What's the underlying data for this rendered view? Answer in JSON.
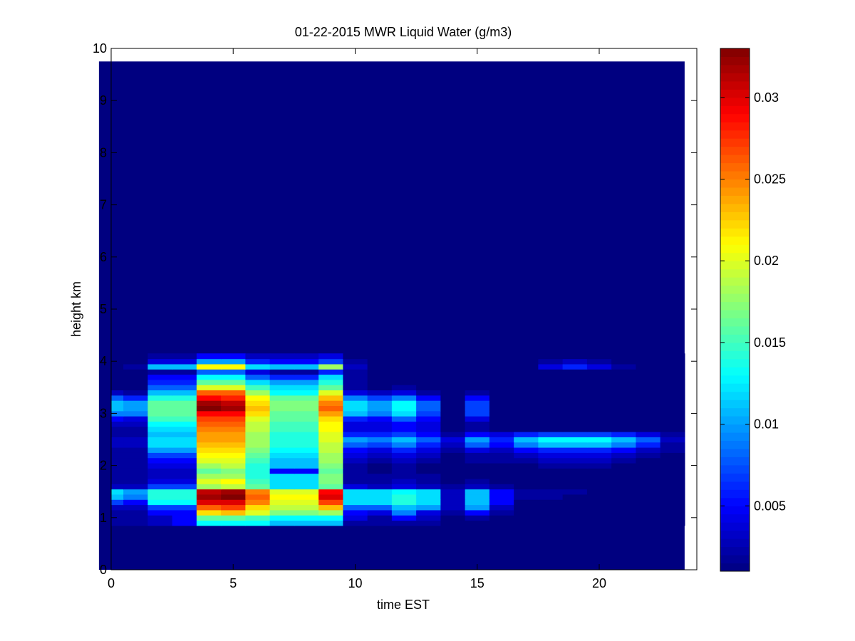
{
  "chart_data": {
    "type": "heatmap",
    "title": "01-22-2015 MWR Liquid Water (g/m3)",
    "xlabel": "time EST",
    "ylabel": "height km",
    "xlim": [
      0,
      24
    ],
    "ylim": [
      0,
      10
    ],
    "xticks": [
      0,
      5,
      10,
      15,
      20
    ],
    "yticks": [
      0,
      1,
      2,
      3,
      4,
      5,
      6,
      7,
      8,
      9,
      10
    ],
    "colormap": "jet",
    "clim": [
      0.001,
      0.033
    ],
    "colorbar_ticks": [
      0.005,
      0.01,
      0.015,
      0.02,
      0.025,
      0.03
    ],
    "colorbar_tick_labels": [
      "0.005",
      "0.01",
      "0.015",
      "0.02",
      "0.025",
      "0.03"
    ],
    "x": [
      0,
      1,
      2,
      3,
      4,
      5,
      6,
      7,
      8,
      9,
      10,
      11,
      12,
      13,
      14,
      15,
      16,
      17,
      18,
      19,
      20,
      21,
      22,
      23
    ],
    "y": [
      0.9,
      1.0,
      1.1,
      1.2,
      1.3,
      1.4,
      1.5,
      1.6,
      1.7,
      1.8,
      1.9,
      2.0,
      2.1,
      2.2,
      2.3,
      2.4,
      2.5,
      2.6,
      2.7,
      2.8,
      2.9,
      3.0,
      3.1,
      3.2,
      3.3,
      3.4,
      3.5,
      3.6,
      3.7,
      3.8,
      3.9,
      4.0,
      4.1
    ],
    "values": [
      [
        0.002,
        0.002,
        0.003,
        0.005,
        0.013,
        0.013,
        0.013,
        0.011,
        0.011,
        0.011,
        0.002,
        0.002,
        0.002,
        0.002,
        0.001,
        0.001,
        0.001,
        0.001,
        0.001,
        0.001,
        0.001,
        0.001,
        0.001,
        0.001
      ],
      [
        0.002,
        0.002,
        0.003,
        0.005,
        0.016,
        0.016,
        0.015,
        0.013,
        0.013,
        0.013,
        0.004,
        0.002,
        0.005,
        0.003,
        0.001,
        0.002,
        0.001,
        0.001,
        0.001,
        0.001,
        0.001,
        0.001,
        0.001,
        0.001
      ],
      [
        0.002,
        0.002,
        0.005,
        0.005,
        0.022,
        0.023,
        0.02,
        0.017,
        0.017,
        0.018,
        0.005,
        0.004,
        0.009,
        0.004,
        0.002,
        0.005,
        0.002,
        0.001,
        0.001,
        0.001,
        0.001,
        0.001,
        0.001,
        0.001
      ],
      [
        0.003,
        0.003,
        0.007,
        0.007,
        0.026,
        0.027,
        0.022,
        0.019,
        0.019,
        0.023,
        0.008,
        0.008,
        0.011,
        0.01,
        0.003,
        0.01,
        0.003,
        0.001,
        0.001,
        0.001,
        0.001,
        0.001,
        0.001,
        0.001
      ],
      [
        0.007,
        0.005,
        0.013,
        0.013,
        0.03,
        0.03,
        0.025,
        0.02,
        0.02,
        0.027,
        0.012,
        0.012,
        0.014,
        0.012,
        0.003,
        0.011,
        0.005,
        0.001,
        0.001,
        0.001,
        0.001,
        0.001,
        0.001,
        0.001
      ],
      [
        0.011,
        0.009,
        0.014,
        0.014,
        0.032,
        0.033,
        0.026,
        0.021,
        0.021,
        0.03,
        0.012,
        0.012,
        0.014,
        0.012,
        0.003,
        0.011,
        0.005,
        0.002,
        0.002,
        0.001,
        0.001,
        0.001,
        0.001,
        0.001
      ],
      [
        0.012,
        0.01,
        0.014,
        0.014,
        0.031,
        0.032,
        0.025,
        0.02,
        0.02,
        0.029,
        0.012,
        0.012,
        0.013,
        0.012,
        0.003,
        0.011,
        0.005,
        0.002,
        0.002,
        0.002,
        0.001,
        0.001,
        0.001,
        0.001
      ],
      [
        0.003,
        0.003,
        0.007,
        0.007,
        0.018,
        0.019,
        0.016,
        0.012,
        0.012,
        0.016,
        0.004,
        0.003,
        0.004,
        0.003,
        0.002,
        0.003,
        0.002,
        0.001,
        0.001,
        0.001,
        0.001,
        0.001,
        0.001,
        0.001
      ],
      [
        0.002,
        0.002,
        0.004,
        0.004,
        0.02,
        0.021,
        0.015,
        0.012,
        0.012,
        0.017,
        0.002,
        0.002,
        0.003,
        0.002,
        0.001,
        0.002,
        0.001,
        0.001,
        0.001,
        0.001,
        0.001,
        0.001,
        0.001,
        0.001
      ],
      [
        0.002,
        0.002,
        0.003,
        0.003,
        0.018,
        0.018,
        0.014,
        0.012,
        0.012,
        0.017,
        0.002,
        0.002,
        0.002,
        0.002,
        0.001,
        0.001,
        0.001,
        0.001,
        0.001,
        0.001,
        0.001,
        0.001,
        0.001,
        0.001
      ],
      [
        0.002,
        0.002,
        0.003,
        0.003,
        0.016,
        0.017,
        0.014,
        0.005,
        0.005,
        0.016,
        0.002,
        0.001,
        0.002,
        0.001,
        0.001,
        0.001,
        0.001,
        0.001,
        0.001,
        0.001,
        0.001,
        0.001,
        0.001,
        0.001
      ],
      [
        0.002,
        0.002,
        0.004,
        0.004,
        0.018,
        0.019,
        0.014,
        0.011,
        0.011,
        0.017,
        0.002,
        0.001,
        0.002,
        0.001,
        0.001,
        0.001,
        0.001,
        0.001,
        0.002,
        0.002,
        0.002,
        0.001,
        0.001,
        0.001
      ],
      [
        0.002,
        0.002,
        0.005,
        0.005,
        0.02,
        0.02,
        0.015,
        0.011,
        0.011,
        0.018,
        0.003,
        0.002,
        0.003,
        0.002,
        0.001,
        0.002,
        0.002,
        0.002,
        0.003,
        0.003,
        0.003,
        0.002,
        0.001,
        0.001
      ],
      [
        0.002,
        0.002,
        0.007,
        0.007,
        0.021,
        0.021,
        0.016,
        0.012,
        0.012,
        0.018,
        0.004,
        0.003,
        0.004,
        0.003,
        0.001,
        0.002,
        0.002,
        0.003,
        0.004,
        0.004,
        0.004,
        0.003,
        0.002,
        0.001
      ],
      [
        0.002,
        0.002,
        0.01,
        0.01,
        0.022,
        0.022,
        0.017,
        0.013,
        0.013,
        0.019,
        0.005,
        0.004,
        0.006,
        0.004,
        0.002,
        0.004,
        0.003,
        0.005,
        0.006,
        0.006,
        0.006,
        0.005,
        0.003,
        0.002
      ],
      [
        0.003,
        0.003,
        0.012,
        0.012,
        0.023,
        0.023,
        0.018,
        0.014,
        0.014,
        0.019,
        0.008,
        0.007,
        0.009,
        0.006,
        0.003,
        0.008,
        0.005,
        0.009,
        0.011,
        0.011,
        0.011,
        0.009,
        0.006,
        0.002
      ],
      [
        0.003,
        0.003,
        0.012,
        0.012,
        0.024,
        0.024,
        0.018,
        0.014,
        0.014,
        0.02,
        0.01,
        0.009,
        0.011,
        0.008,
        0.004,
        0.01,
        0.006,
        0.011,
        0.013,
        0.013,
        0.013,
        0.011,
        0.008,
        0.003
      ],
      [
        0.002,
        0.002,
        0.011,
        0.011,
        0.024,
        0.024,
        0.018,
        0.014,
        0.014,
        0.02,
        0.006,
        0.006,
        0.007,
        0.005,
        0.002,
        0.005,
        0.004,
        0.006,
        0.007,
        0.007,
        0.007,
        0.006,
        0.004,
        0.002
      ],
      [
        0.002,
        0.002,
        0.012,
        0.012,
        0.025,
        0.025,
        0.019,
        0.015,
        0.015,
        0.021,
        0.004,
        0.004,
        0.005,
        0.004,
        0.001,
        0.002,
        0.001,
        0.001,
        0.001,
        0.001,
        0.001,
        0.001,
        0.001,
        0.001
      ],
      [
        0.003,
        0.003,
        0.013,
        0.013,
        0.026,
        0.026,
        0.019,
        0.015,
        0.015,
        0.021,
        0.004,
        0.004,
        0.005,
        0.004,
        0.001,
        0.002,
        0.001,
        0.001,
        0.001,
        0.001,
        0.001,
        0.001,
        0.001,
        0.001
      ],
      [
        0.005,
        0.004,
        0.015,
        0.015,
        0.027,
        0.027,
        0.02,
        0.016,
        0.016,
        0.022,
        0.006,
        0.005,
        0.008,
        0.005,
        0.001,
        0.004,
        0.001,
        0.001,
        0.001,
        0.001,
        0.001,
        0.001,
        0.001,
        0.001
      ],
      [
        0.009,
        0.009,
        0.016,
        0.016,
        0.029,
        0.029,
        0.022,
        0.016,
        0.016,
        0.024,
        0.011,
        0.009,
        0.012,
        0.007,
        0.001,
        0.007,
        0.001,
        0.001,
        0.001,
        0.001,
        0.001,
        0.001,
        0.001,
        0.001
      ],
      [
        0.011,
        0.01,
        0.016,
        0.016,
        0.033,
        0.032,
        0.023,
        0.017,
        0.017,
        0.026,
        0.012,
        0.01,
        0.013,
        0.008,
        0.001,
        0.007,
        0.001,
        0.001,
        0.001,
        0.001,
        0.001,
        0.001,
        0.001,
        0.001
      ],
      [
        0.011,
        0.01,
        0.016,
        0.016,
        0.032,
        0.031,
        0.022,
        0.017,
        0.017,
        0.025,
        0.012,
        0.01,
        0.013,
        0.008,
        0.001,
        0.007,
        0.001,
        0.001,
        0.001,
        0.001,
        0.001,
        0.001,
        0.001,
        0.001
      ],
      [
        0.008,
        0.006,
        0.014,
        0.014,
        0.029,
        0.028,
        0.021,
        0.016,
        0.016,
        0.023,
        0.009,
        0.007,
        0.009,
        0.005,
        0.001,
        0.005,
        0.001,
        0.001,
        0.001,
        0.001,
        0.001,
        0.001,
        0.001,
        0.001
      ],
      [
        0.003,
        0.002,
        0.011,
        0.011,
        0.026,
        0.026,
        0.018,
        0.013,
        0.013,
        0.02,
        0.004,
        0.003,
        0.004,
        0.002,
        0.001,
        0.002,
        0.001,
        0.001,
        0.001,
        0.001,
        0.001,
        0.001,
        0.001,
        0.001
      ],
      [
        0.001,
        0.001,
        0.008,
        0.008,
        0.02,
        0.02,
        0.015,
        0.012,
        0.012,
        0.016,
        0.002,
        0.001,
        0.002,
        0.001,
        0.001,
        0.001,
        0.001,
        0.001,
        0.001,
        0.001,
        0.001,
        0.001,
        0.001,
        0.001
      ],
      [
        0.001,
        0.001,
        0.006,
        0.006,
        0.016,
        0.016,
        0.012,
        0.01,
        0.01,
        0.014,
        0.002,
        0.001,
        0.001,
        0.001,
        0.001,
        0.001,
        0.001,
        0.001,
        0.001,
        0.001,
        0.001,
        0.001,
        0.001,
        0.001
      ],
      [
        0.001,
        0.001,
        0.005,
        0.005,
        0.013,
        0.013,
        0.008,
        0.006,
        0.006,
        0.012,
        0.002,
        0.001,
        0.001,
        0.001,
        0.001,
        0.001,
        0.001,
        0.001,
        0.001,
        0.001,
        0.001,
        0.001,
        0.001,
        0.001
      ],
      [
        0.001,
        0.001,
        0.002,
        0.002,
        0.008,
        0.008,
        0.004,
        0.002,
        0.002,
        0.006,
        0.002,
        0.001,
        0.001,
        0.001,
        0.001,
        0.001,
        0.001,
        0.001,
        0.001,
        0.001,
        0.001,
        0.001,
        0.001,
        0.001
      ],
      [
        0.001,
        0.002,
        0.011,
        0.011,
        0.021,
        0.021,
        0.012,
        0.011,
        0.011,
        0.018,
        0.003,
        0.001,
        0.001,
        0.001,
        0.001,
        0.001,
        0.001,
        0.001,
        0.004,
        0.006,
        0.004,
        0.002,
        0.001,
        0.001
      ],
      [
        0.001,
        0.001,
        0.004,
        0.004,
        0.01,
        0.01,
        0.006,
        0.005,
        0.005,
        0.007,
        0.002,
        0.001,
        0.001,
        0.001,
        0.001,
        0.001,
        0.001,
        0.001,
        0.002,
        0.003,
        0.002,
        0.001,
        0.001,
        0.001
      ],
      [
        0.001,
        0.001,
        0.002,
        0.002,
        0.005,
        0.005,
        0.003,
        0.003,
        0.003,
        0.004,
        0.001,
        0.001,
        0.001,
        0.001,
        0.001,
        0.001,
        0.001,
        0.001,
        0.001,
        0.001,
        0.001,
        0.001,
        0.001,
        0.001
      ]
    ],
    "no_data_region": "above 9.75 km and after 23.5 EST shown blank",
    "grid": false,
    "background_value": 0.001
  }
}
